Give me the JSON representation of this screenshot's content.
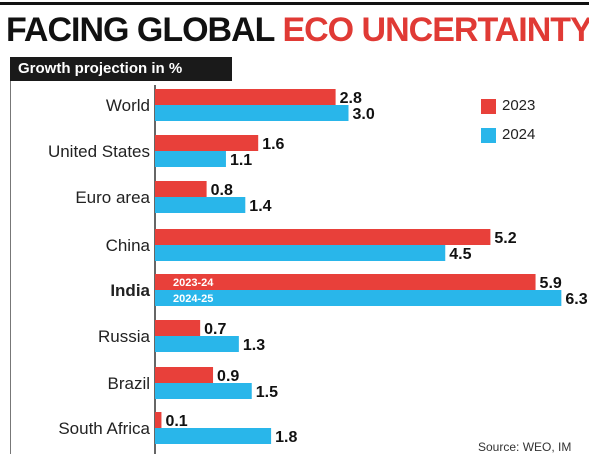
{
  "header": {
    "title_dark": "FACING GLOBAL",
    "title_red": "ECO UNCERTAINTY",
    "subtitle": "Growth projection in %"
  },
  "legend": [
    "2023",
    "2024"
  ],
  "source": "Source: WEO, IM",
  "colors": {
    "series_2023": "#e8403a",
    "series_2024": "#29b6ea"
  },
  "chart_data": {
    "type": "bar",
    "orientation": "horizontal",
    "title": "Growth projection in %",
    "categories": [
      "World",
      "United States",
      "Euro area",
      "China",
      "India",
      "Russia",
      "Brazil",
      "South Africa"
    ],
    "series": [
      {
        "name": "2023",
        "values": [
          2.8,
          1.6,
          0.8,
          5.2,
          5.9,
          0.7,
          0.9,
          0.1
        ]
      },
      {
        "name": "2024",
        "values": [
          3.0,
          1.1,
          1.4,
          4.5,
          6.3,
          1.3,
          1.5,
          1.8
        ]
      }
    ],
    "bar_annotations": {
      "India": [
        "2023-24",
        "2024-25"
      ]
    },
    "highlight_category": "India",
    "legend_position": "top-right"
  }
}
